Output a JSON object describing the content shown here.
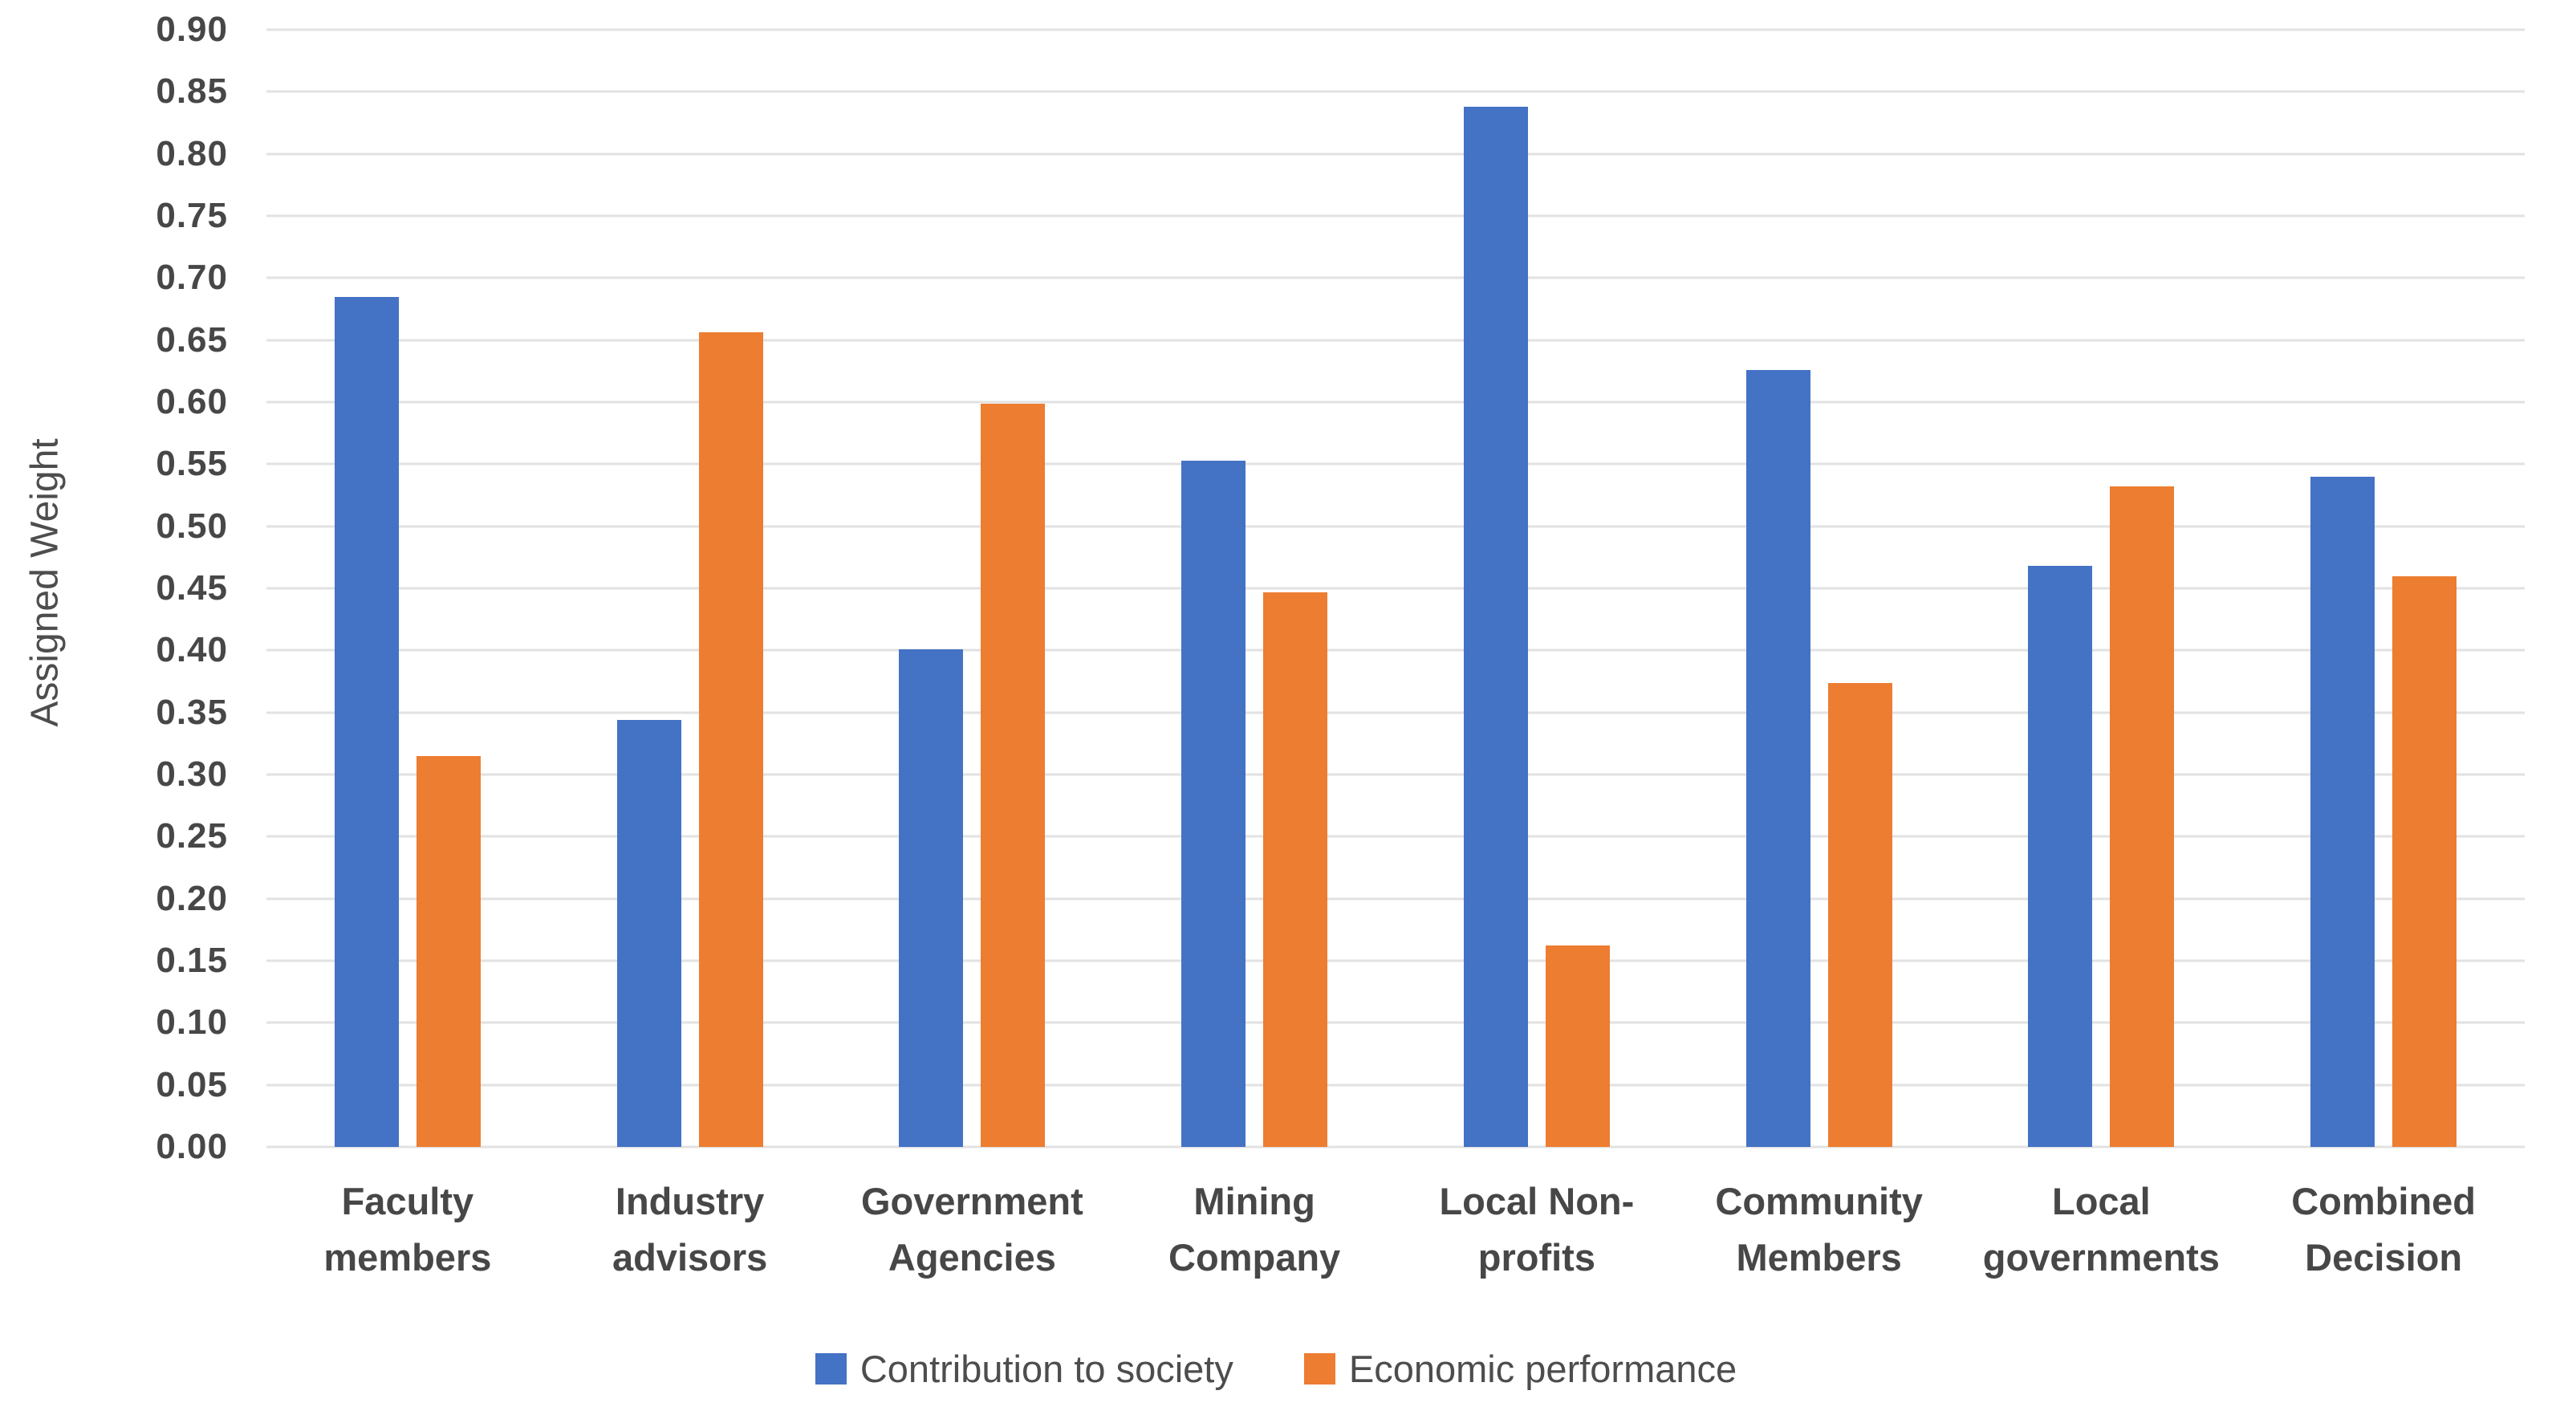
{
  "chart_data": {
    "type": "bar",
    "title": "",
    "ylabel": "Assigned Weight",
    "xlabel": "",
    "ylim": [
      0,
      0.9
    ],
    "ytick_step": 0.05,
    "ytick_decimals": 2,
    "grid": "horizontal",
    "legend_position": "bottom",
    "categories": [
      "Faculty members",
      "Industry advisors",
      "Government Agencies",
      "Mining Company",
      "Local Non-profits",
      "Community Members",
      "Local governments",
      "Combined Decision"
    ],
    "series": [
      {
        "name": "Contribution to society",
        "color": "#4472C4",
        "values": [
          0.685,
          0.344,
          0.401,
          0.553,
          0.838,
          0.626,
          0.468,
          0.54
        ]
      },
      {
        "name": "Economic performance",
        "color": "#ED7D31",
        "values": [
          0.315,
          0.656,
          0.599,
          0.447,
          0.162,
          0.374,
          0.532,
          0.46
        ]
      }
    ]
  },
  "colors": {
    "background": "#ffffff",
    "gridline": "#e2e2e2",
    "axis_text": "#474747",
    "series_blue": "#4472C4",
    "series_orange": "#ED7D31"
  }
}
